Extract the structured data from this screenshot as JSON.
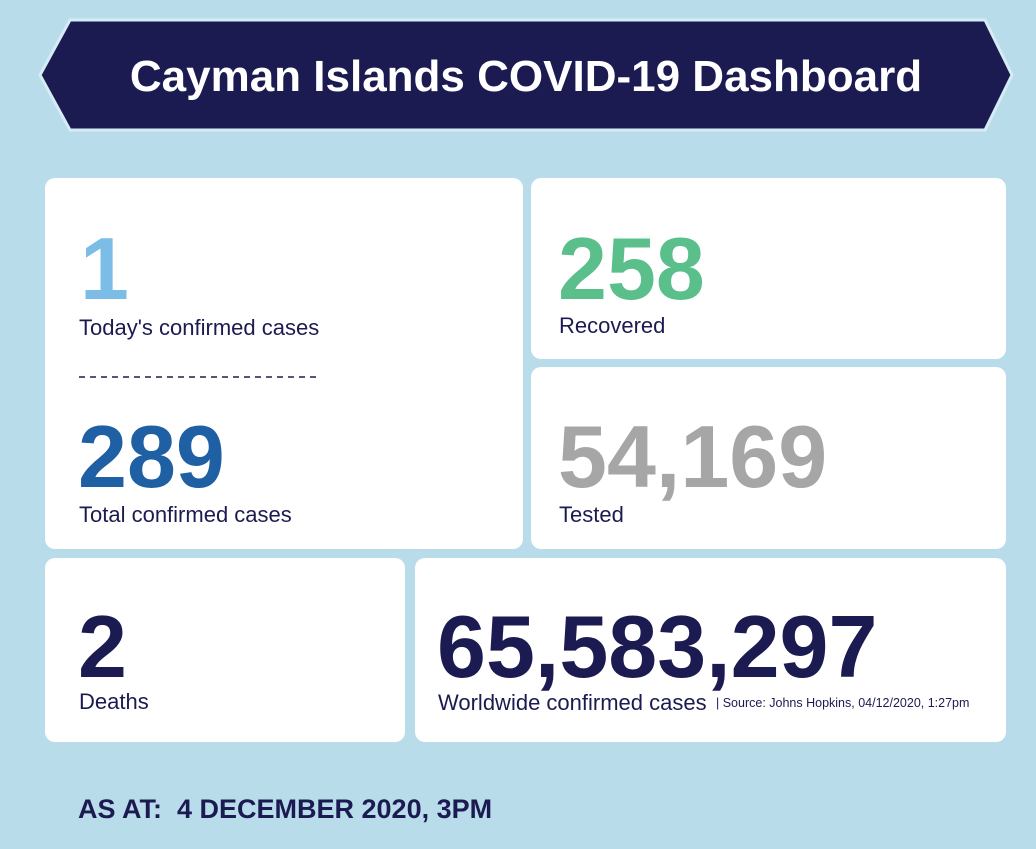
{
  "header": {
    "title": "Cayman Islands COVID-19 Dashboard"
  },
  "cards": [
    {
      "value": "1",
      "label": "Today's confirmed cases"
    },
    {
      "value": "289",
      "label": "Total confirmed cases"
    },
    {
      "value": "258",
      "label": "Recovered"
    },
    {
      "value": "54,169",
      "label": "Tested"
    },
    {
      "value": "2",
      "label": "Deaths"
    },
    {
      "value": "65,583,297",
      "label": "Worldwide confirmed cases",
      "source": "| Source: Johns Hopkins, 04/12/2020, 1:27pm"
    }
  ],
  "footer": "AS AT:  4 DECEMBER 2020, 3PM"
}
